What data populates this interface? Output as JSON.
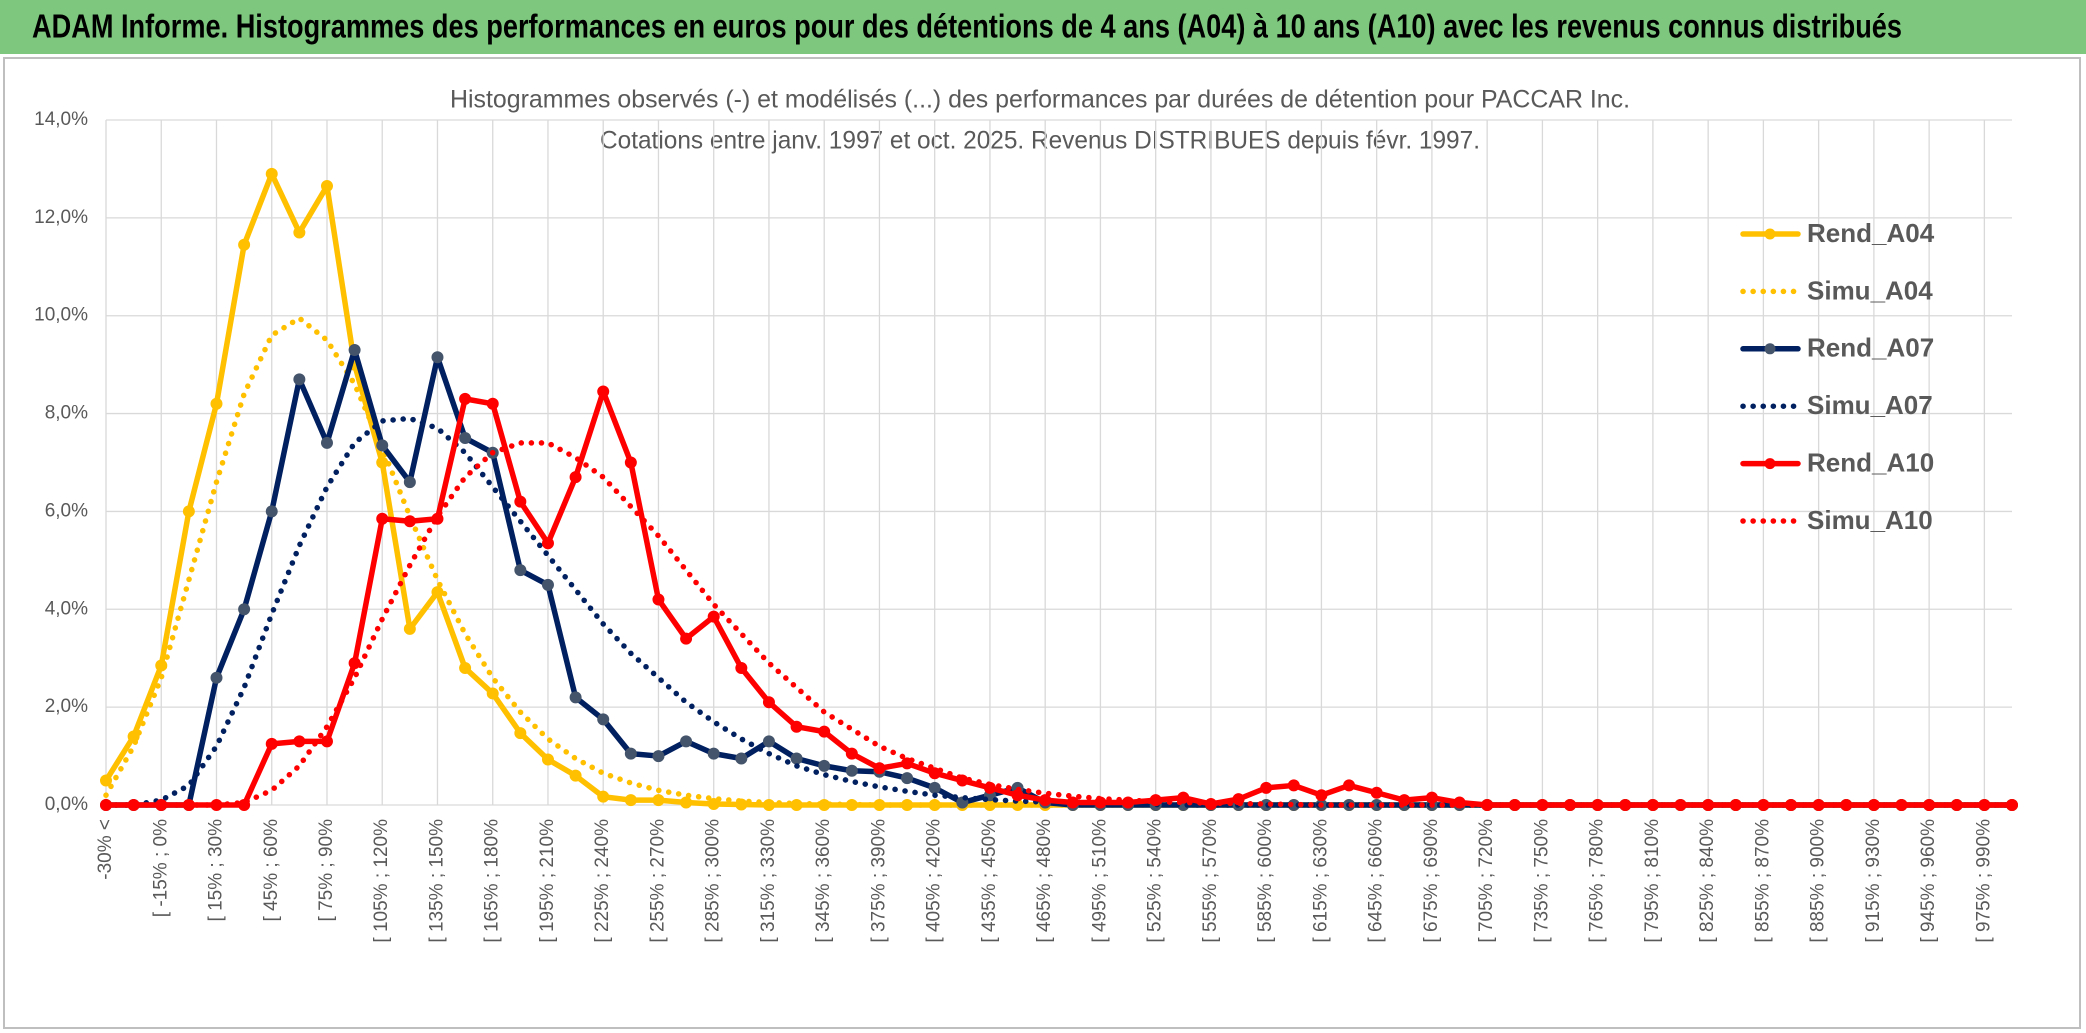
{
  "header": {
    "title": "ADAM Informe. Histogrammes des performances en euros pour des détentions de 4 ans (A04) à 10 ans (A10) avec les revenus connus distribués"
  },
  "chart_data": {
    "type": "line",
    "title": [
      "Histogrammes observés (-) et modélisés (...) des performances par durées de détention pour PACCAR Inc.",
      "Cotations entre janv. 1997 et oct. 2025. Revenus DISTRIBUES depuis févr. 1997."
    ],
    "categories": [
      "-30% <",
      null,
      "[ -15% ; 0%",
      null,
      "[ 15% ; 30%",
      null,
      "[ 45% ; 60%",
      null,
      "[ 75% ; 90%",
      null,
      "[ 105% ; 120%",
      null,
      "[ 135% ; 150%",
      null,
      "[ 165% ; 180%",
      null,
      "[ 195% ; 210%",
      null,
      "[ 225% ; 240%",
      null,
      "[ 255% ; 270%",
      null,
      "[ 285% ; 300%",
      null,
      "[ 315% ; 330%",
      null,
      "[ 345% ; 360%",
      null,
      "[ 375% ; 390%",
      null,
      "[ 405% ; 420%",
      null,
      "[ 435% ; 450%",
      null,
      "[ 465% ; 480%",
      null,
      "[ 495% ; 510%",
      null,
      "[ 525% ; 540%",
      null,
      "[ 555% ; 570%",
      null,
      "[ 585% ; 600%",
      null,
      "[ 615% ; 630%",
      null,
      "[ 645% ; 660%",
      null,
      "[ 675% ; 690%",
      null,
      "[ 705% ; 720%",
      null,
      "[ 735% ; 750%",
      null,
      "[ 765% ; 780%",
      null,
      "[ 795% ; 810%",
      null,
      "[ 825% ; 840%",
      null,
      "[ 855% ; 870%",
      null,
      "[ 885% ; 900%",
      null,
      "[ 915% ; 930%",
      null,
      "[ 945% ; 960%",
      null,
      "[ 975% ; 990%",
      null
    ],
    "series": [
      {
        "name": "Rend_A04",
        "color": "#FFC000",
        "marker_color": "#FFC000",
        "style": "solid",
        "markers": true,
        "values": [
          0.5,
          1.4,
          2.85,
          6.0,
          8.2,
          11.45,
          12.9,
          11.7,
          12.65,
          9.0,
          7.0,
          3.6,
          4.35,
          2.8,
          2.28,
          1.47,
          0.93,
          0.6,
          0.17,
          0.1,
          0.1,
          0.05,
          0.02,
          0.01,
          0,
          0,
          0,
          0,
          0,
          0,
          0,
          0,
          0,
          0,
          0,
          0,
          0,
          0,
          0,
          0,
          0,
          0,
          0,
          0,
          0,
          0,
          0,
          0,
          0,
          0,
          0,
          0,
          0,
          0,
          0,
          0,
          0,
          0,
          0,
          0,
          0,
          0,
          0,
          0,
          0,
          0,
          0,
          0,
          0,
          0
        ]
      },
      {
        "name": "Simu_A04",
        "color": "#FFC000",
        "style": "dotted",
        "markers": false,
        "values": [
          0.2,
          1.2,
          2.6,
          4.6,
          6.6,
          8.4,
          9.6,
          9.95,
          9.5,
          8.6,
          7.3,
          5.9,
          4.6,
          3.5,
          2.6,
          1.9,
          1.35,
          0.95,
          0.65,
          0.45,
          0.3,
          0.2,
          0.13,
          0.08,
          0.05,
          0.03,
          0.02,
          0.01,
          0,
          0,
          0,
          0,
          0,
          0,
          0,
          0,
          0,
          0,
          0,
          0,
          0,
          0,
          0,
          0,
          0,
          0,
          0,
          0,
          0,
          0,
          0,
          0,
          0,
          0,
          0,
          0,
          0,
          0,
          0,
          0,
          0,
          0,
          0,
          0,
          0,
          0,
          0,
          0,
          0,
          0
        ]
      },
      {
        "name": "Rend_A07",
        "color": "#002060",
        "marker_color": "#44546A",
        "style": "solid",
        "markers": true,
        "values": [
          0,
          0,
          0,
          0,
          2.6,
          4.0,
          6.0,
          8.7,
          7.4,
          9.3,
          7.35,
          6.6,
          9.15,
          7.5,
          7.2,
          4.8,
          4.5,
          2.2,
          1.75,
          1.05,
          1.0,
          1.3,
          1.05,
          0.95,
          1.3,
          0.95,
          0.8,
          0.7,
          0.68,
          0.55,
          0.35,
          0.05,
          0.2,
          0.35,
          0.05,
          0,
          0,
          0,
          0,
          0,
          0,
          0,
          0,
          0,
          0,
          0,
          0,
          0,
          0,
          0,
          0,
          0,
          0,
          0,
          0,
          0,
          0,
          0,
          0,
          0,
          0,
          0,
          0,
          0,
          0,
          0,
          0,
          0,
          0,
          0
        ]
      },
      {
        "name": "Simu_A07",
        "color": "#002060",
        "style": "dotted",
        "markers": false,
        "values": [
          0,
          0,
          0.1,
          0.4,
          1.2,
          2.4,
          3.9,
          5.3,
          6.5,
          7.4,
          7.85,
          7.9,
          7.7,
          7.2,
          6.5,
          5.8,
          5.1,
          4.4,
          3.7,
          3.1,
          2.6,
          2.1,
          1.7,
          1.35,
          1.05,
          0.8,
          0.62,
          0.48,
          0.37,
          0.28,
          0.2,
          0.15,
          0.11,
          0.08,
          0.06,
          0.04,
          0.03,
          0.02,
          0.01,
          0,
          0,
          0,
          0,
          0,
          0,
          0,
          0,
          0,
          0,
          0,
          0,
          0,
          0,
          0,
          0,
          0,
          0,
          0,
          0,
          0,
          0,
          0,
          0,
          0,
          0,
          0,
          0,
          0,
          0,
          0
        ]
      },
      {
        "name": "Rend_A10",
        "color": "#FF0000",
        "marker_color": "#FF0000",
        "style": "solid",
        "markers": true,
        "values": [
          0,
          0,
          0,
          0,
          0,
          0,
          1.25,
          1.3,
          1.3,
          2.9,
          5.85,
          5.8,
          5.85,
          8.3,
          8.2,
          6.2,
          5.35,
          6.7,
          8.45,
          7.0,
          4.2,
          3.4,
          3.85,
          2.8,
          2.1,
          1.6,
          1.5,
          1.05,
          0.75,
          0.85,
          0.65,
          0.5,
          0.35,
          0.2,
          0.1,
          0.05,
          0.05,
          0.05,
          0.1,
          0.15,
          0.02,
          0.12,
          0.35,
          0.4,
          0.2,
          0.4,
          0.25,
          0.1,
          0.15,
          0.05,
          0,
          0,
          0,
          0,
          0,
          0,
          0,
          0,
          0,
          0,
          0,
          0,
          0,
          0,
          0,
          0,
          0,
          0,
          0,
          0
        ]
      },
      {
        "name": "Simu_A10",
        "color": "#FF0000",
        "style": "dotted",
        "markers": false,
        "values": [
          0,
          0,
          0,
          0,
          0,
          0.05,
          0.3,
          0.8,
          1.6,
          2.6,
          3.8,
          4.9,
          5.9,
          6.7,
          7.2,
          7.4,
          7.4,
          7.1,
          6.7,
          6.1,
          5.5,
          4.8,
          4.1,
          3.5,
          2.9,
          2.4,
          1.9,
          1.55,
          1.2,
          0.95,
          0.75,
          0.55,
          0.42,
          0.32,
          0.24,
          0.18,
          0.13,
          0.1,
          0.07,
          0.05,
          0.04,
          0.03,
          0.02,
          0.01,
          0,
          0,
          0,
          0,
          0,
          0,
          0,
          0,
          0,
          0,
          0,
          0,
          0,
          0,
          0,
          0,
          0,
          0,
          0,
          0,
          0,
          0,
          0,
          0,
          0,
          0
        ]
      }
    ],
    "ylim": [
      0,
      14
    ],
    "yticks": [
      {
        "value": 0,
        "label": "0,0%"
      },
      {
        "value": 2,
        "label": "2,0%"
      },
      {
        "value": 4,
        "label": "4,0%"
      },
      {
        "value": 6,
        "label": "6,0%"
      },
      {
        "value": 8,
        "label": "8,0%"
      },
      {
        "value": 10,
        "label": "10,0%"
      },
      {
        "value": 12,
        "label": "12,0%"
      },
      {
        "value": 14,
        "label": "14,0%"
      }
    ],
    "grid": true,
    "legend": "right"
  }
}
